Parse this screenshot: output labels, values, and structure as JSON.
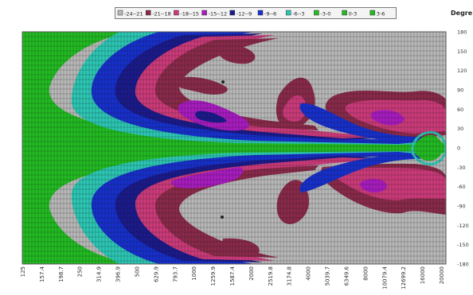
{
  "chart_data": {
    "type": "heatmap",
    "subtype": "filled-contour",
    "title": "",
    "xlabel": "",
    "ylabel": "Degre",
    "x_scale": "log",
    "x_ticks": [
      "125",
      "157.4",
      "198.7",
      "250",
      "314.9",
      "396.9",
      "500",
      "629.9",
      "793.7",
      "1000",
      "1259.9",
      "1587.4",
      "2000",
      "2519.8",
      "3174.8",
      "4000",
      "5039.7",
      "6349.6",
      "8000",
      "10079.4",
      "12699.2",
      "16000",
      "20000"
    ],
    "y_ticks": [
      "180",
      "150",
      "120",
      "90",
      "60",
      "30",
      "0",
      "-30",
      "-60",
      "-90",
      "-120",
      "-150",
      "-180"
    ],
    "ylim": [
      -180,
      180
    ],
    "grid": true,
    "legend_position": "top",
    "legend": [
      {
        "label": "-24--21",
        "color": "#b8b8b8"
      },
      {
        "label": "-21--18",
        "color": "#8a2a4a"
      },
      {
        "label": "-18--15",
        "color": "#cc3a7a"
      },
      {
        "label": "-15--12",
        "color": "#a81cc0"
      },
      {
        "label": "-12--9",
        "color": "#1a1a8c"
      },
      {
        "label": "-9--6",
        "color": "#1630cc"
      },
      {
        "label": "-6--3",
        "color": "#2cc7b4"
      },
      {
        "label": "-3-0",
        "color": "#22bb22"
      },
      {
        "label": "0-3",
        "color": "#22bb22"
      },
      {
        "label": "3-6",
        "color": "#22bb22"
      }
    ]
  }
}
